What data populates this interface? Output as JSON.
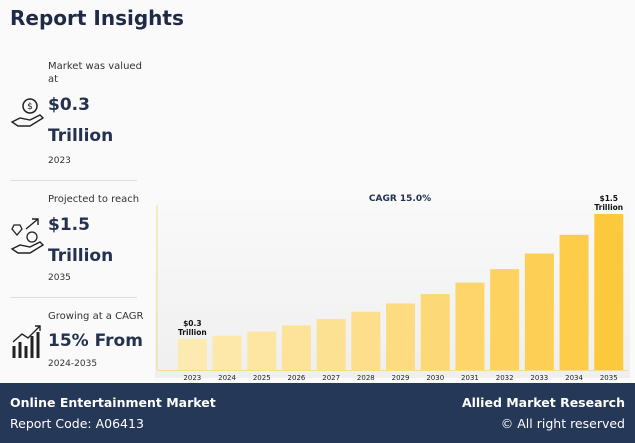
{
  "header": {
    "title": "Report Insights"
  },
  "stats": [
    {
      "lead": "Market was valued at",
      "value": "$0.3 Trillion",
      "sub": "2023"
    },
    {
      "lead": "Projected to reach",
      "value": "$1.5 Trillion",
      "sub": "2035"
    },
    {
      "lead": "Growing at a CAGR",
      "value": "15% From",
      "sub": "2024-2035"
    }
  ],
  "chart_data": {
    "type": "bar",
    "annotation": "CAGR 15.0%",
    "categories": [
      "2023",
      "2024",
      "2025",
      "2026",
      "2027",
      "2028",
      "2029",
      "2030",
      "2031",
      "2032",
      "2033",
      "2034",
      "2035"
    ],
    "values": [
      0.3,
      0.33,
      0.37,
      0.43,
      0.49,
      0.56,
      0.64,
      0.73,
      0.84,
      0.97,
      1.12,
      1.3,
      1.5
    ],
    "value_labels": [
      "$0.3 Trillion",
      null,
      null,
      null,
      null,
      null,
      null,
      null,
      null,
      null,
      null,
      null,
      "$1.5 Trillion"
    ],
    "colors": [
      "#fdeab0",
      "#fde8a9",
      "#fde6a2",
      "#fde39a",
      "#fde193",
      "#fdde8a",
      "#fddb80",
      "#fdd876",
      "#fdd56b",
      "#fdd25f",
      "#fdcf54",
      "#fdcc49",
      "#fdc93c"
    ]
  },
  "footer": {
    "left_title": "Online Entertainment Market",
    "left_sub": "Report Code: A06413",
    "right_title": "Allied Market Research",
    "right_sub": "© All right reserved"
  }
}
